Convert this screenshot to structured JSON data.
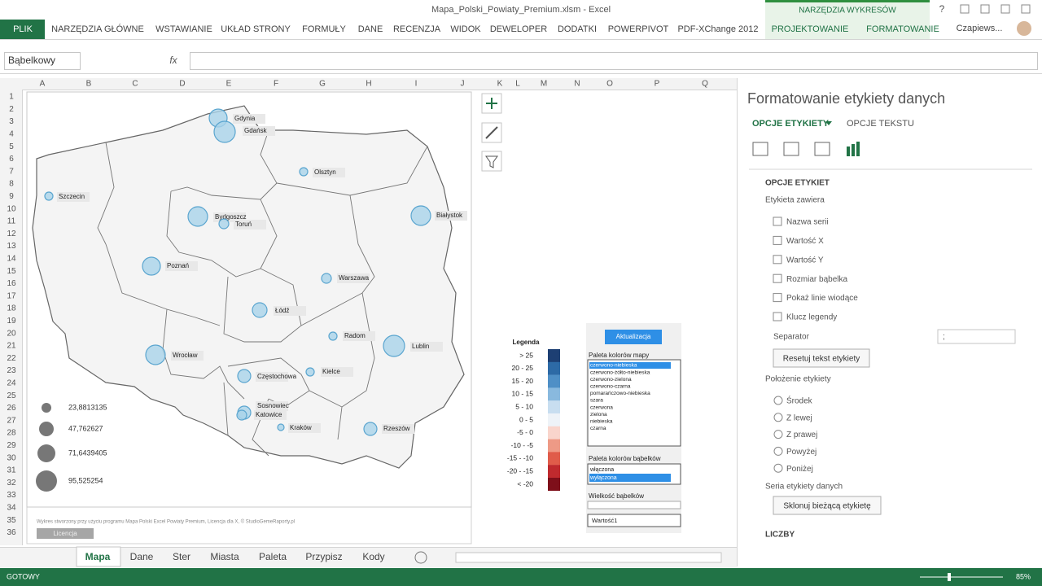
{
  "title_bar": {
    "file": "Mapa_Polski_Powiaty_Premium.xlsm - Excel",
    "context": "NARZĘDZIA WYKRESÓW",
    "help": "?"
  },
  "ribbon": {
    "tabs": [
      "PLIK",
      "NARZĘDZIA GŁÓWNE",
      "WSTAWIANIE",
      "UKŁAD STRONY",
      "FORMUŁY",
      "DANE",
      "RECENZJA",
      "WIDOK",
      "DEWELOPER",
      "DODATKI",
      "POWERPIVOT",
      "PDF-XChange 2012",
      "PROJEKTOWANIE",
      "FORMATOWANIE"
    ],
    "user": "Czapiews..."
  },
  "formula_bar": {
    "name_box": "Bąbelkowy",
    "fx": "fx"
  },
  "grid": {
    "columns": [
      "A",
      "B",
      "C",
      "D",
      "E",
      "F",
      "G",
      "H",
      "I",
      "J",
      "K",
      "L",
      "M",
      "N",
      "O",
      "P",
      "Q"
    ],
    "rows": [
      1,
      2,
      3,
      4,
      5,
      6,
      7,
      8,
      9,
      10,
      11,
      12,
      13,
      14,
      15,
      16,
      17,
      18,
      19,
      20,
      21,
      22,
      23,
      24,
      25,
      26,
      27,
      28,
      29,
      30,
      31,
      32,
      33,
      34,
      35,
      36
    ]
  },
  "map": {
    "cities": [
      "Gdynia",
      "Gdańsk",
      "Olsztyn",
      "Szczecin",
      "Bydgoszcz",
      "Toruń",
      "Białystok",
      "Poznań",
      "Warszawa",
      "Łódź",
      "Radom",
      "Lublin",
      "Wrocław",
      "Kielce",
      "Częstochowa",
      "Sosnowiec",
      "Katowice",
      "Kraków",
      "Rzeszów"
    ],
    "size_legend": [
      "23,8813135",
      "47,762627",
      "71,6439405",
      "95,525254"
    ],
    "note": "Wykres stworzony przy użyciu programu Mapa Polski Excel Powiaty Premium, Licencja dla X, © StudioGemeRaporty.pl",
    "license_button": "Licencja"
  },
  "color_legend": {
    "title": "Legenda",
    "items": [
      "> 25",
      "20 - 25",
      "15 - 20",
      "10 - 15",
      "5 - 10",
      "0 - 5",
      "-5 - 0",
      "-10 - -5",
      "-15 - -10",
      "-20 - -15",
      "< -20"
    ]
  },
  "controls": {
    "update_button": "Aktualizacja",
    "map_palette_label": "Paleta kolorów mapy",
    "map_palettes": [
      "czerwono-niebieska",
      "czerwono-żółto-niebieska",
      "czerwono-zielona",
      "czerwono-czarna",
      "pomarańczowo-niebieska",
      "szara",
      "czerwona",
      "zielona",
      "niebieska",
      "czarna"
    ],
    "bubble_palette_label": "Paleta kolorów bąbelków",
    "bubble_palettes": [
      "włączona",
      "wyłączona"
    ],
    "bubble_size_label": "Wielkość bąbelków",
    "bubble_size_value": "Wartość1"
  },
  "pane": {
    "title": "Formatowanie etykiety danych",
    "tab_label_options": "OPCJE ETYKIETY",
    "tab_text_options": "OPCJE TEKSTU",
    "section": "OPCJE ETYKIET",
    "contains_label": "Etykieta zawiera",
    "checkboxes": [
      "Nazwa serii",
      "Wartość X",
      "Wartość Y",
      "Rozmiar bąbelka",
      "Pokaż linie wiodące",
      "Klucz legendy"
    ],
    "separator_label": "Separator",
    "separator_value": ";",
    "reset_button": "Resetuj tekst etykiety",
    "position_label": "Położenie etykiety",
    "positions": [
      "Środek",
      "Z lewej",
      "Z prawej",
      "Powyżej",
      "Poniżej"
    ],
    "series_label": "Seria etykiety danych",
    "clone_button": "Sklonuj bieżącą etykietę",
    "numbers_section": "LICZBY"
  },
  "sheet_tabs": [
    "Mapa",
    "Dane",
    "Ster",
    "Miasta",
    "Paleta",
    "Przypisz",
    "Kody"
  ],
  "status": {
    "ready": "GOTOWY",
    "zoom": "85%"
  }
}
